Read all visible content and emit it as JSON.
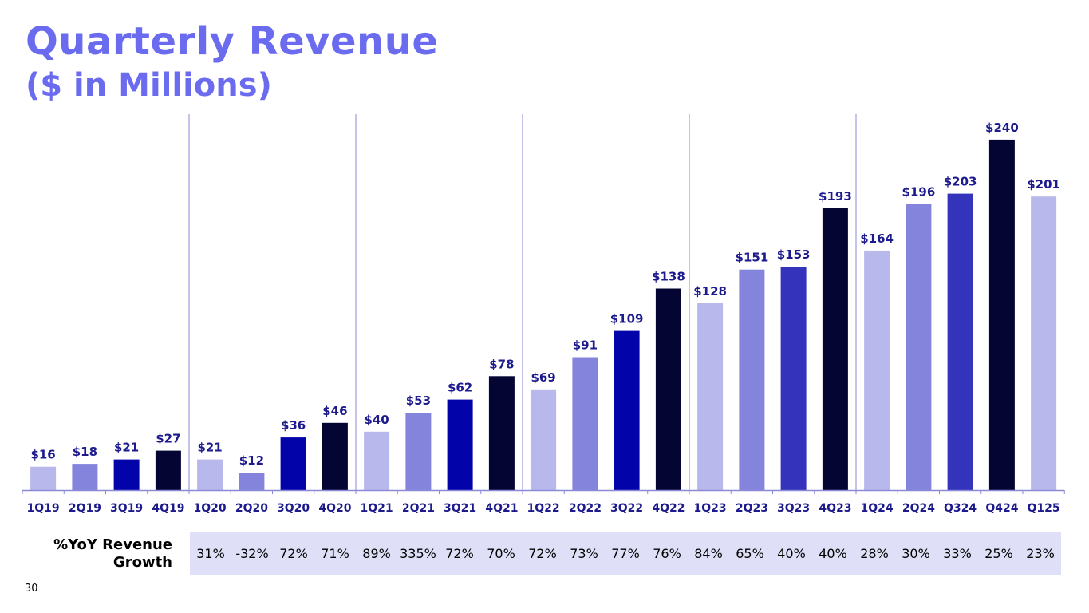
{
  "header": {
    "title": "Quarterly Revenue",
    "subtitle": "($ in Millions)"
  },
  "colors": {
    "title": "#6b6bf0",
    "q1": "#b8b8ec",
    "q2": "#8484dc",
    "q3": "#0303aa",
    "q3_alt": "#3333bb",
    "q4": "#050533",
    "label": "#1c1a8c",
    "growth_row_bg": "#dfe0f7"
  },
  "chart_data": {
    "type": "bar",
    "title": "Quarterly Revenue",
    "subtitle": "($ in Millions)",
    "categories": [
      "1Q19",
      "2Q19",
      "3Q19",
      "4Q19",
      "1Q20",
      "2Q20",
      "3Q20",
      "4Q20",
      "1Q21",
      "2Q21",
      "3Q21",
      "4Q21",
      "1Q22",
      "2Q22",
      "3Q22",
      "4Q22",
      "1Q23",
      "2Q23",
      "3Q23",
      "4Q23",
      "1Q24",
      "2Q24",
      "Q324",
      "Q424",
      "Q125"
    ],
    "values": [
      16,
      18,
      21,
      27,
      21,
      12,
      36,
      46,
      40,
      53,
      62,
      78,
      69,
      91,
      109,
      138,
      128,
      151,
      153,
      193,
      164,
      196,
      203,
      240,
      201
    ],
    "data_labels": [
      "$16",
      "$18",
      "$21",
      "$27",
      "$21",
      "$12",
      "$36",
      "$46",
      "$40",
      "$53",
      "$62",
      "$78",
      "$69",
      "$91",
      "$109",
      "$138",
      "$128",
      "$151",
      "$153",
      "$193",
      "$164",
      "$196",
      "$203",
      "$240",
      "$201"
    ],
    "bar_colors": [
      "#b8b8ec",
      "#8484dc",
      "#0303aa",
      "#050533",
      "#b8b8ec",
      "#8484dc",
      "#0303aa",
      "#050533",
      "#b8b8ec",
      "#8484dc",
      "#0303aa",
      "#050533",
      "#b8b8ec",
      "#8484dc",
      "#0303aa",
      "#050533",
      "#b8b8ec",
      "#8484dc",
      "#3333bb",
      "#050533",
      "#b8b8ec",
      "#8484dc",
      "#3333bb",
      "#050533",
      "#b8b8ec"
    ],
    "ylim": [
      0,
      270
    ],
    "year_dividers_after": [
      "4Q19",
      "4Q20",
      "4Q21",
      "4Q22",
      "4Q23"
    ],
    "xlabel": "",
    "ylabel": "",
    "grid": false,
    "growth_table": {
      "label": "%YoY Revenue Growth",
      "values": [
        "31%",
        "-32%",
        "72%",
        "71%",
        "89%",
        "335%",
        "72%",
        "70%",
        "72%",
        "73%",
        "77%",
        "76%",
        "84%",
        "65%",
        "40%",
        "40%",
        "28%",
        "30%",
        "33%",
        "25%",
        "23%"
      ]
    }
  },
  "footer": {
    "page_number": "30"
  }
}
